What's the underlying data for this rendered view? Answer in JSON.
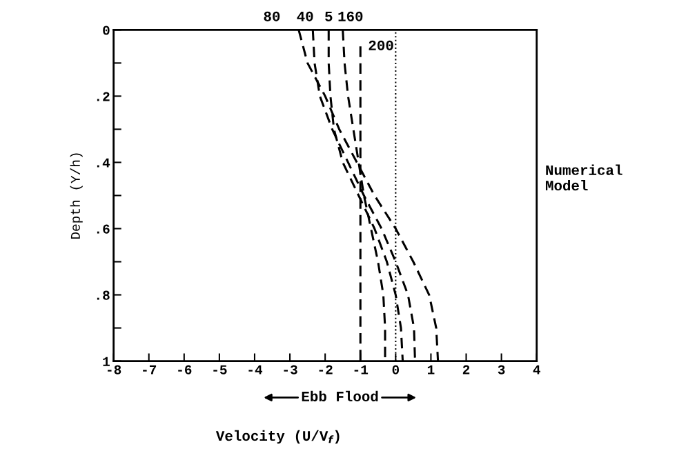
{
  "chart_data": {
    "type": "line",
    "xlabel": "Velocity (U/V$_{f}$)",
    "ylabel": "Depth (Y/h)",
    "xlim": [
      -8,
      4
    ],
    "xticks": [
      -8,
      -7,
      -6,
      -5,
      -4,
      -3,
      -2,
      -1,
      0,
      1,
      2,
      3,
      4
    ],
    "ylim": [
      1,
      0
    ],
    "yticks": [
      {
        "value": 0,
        "label": "0"
      },
      {
        "value": 0.1,
        "label": null
      },
      {
        "value": 0.2,
        "label": ".2"
      },
      {
        "value": 0.3,
        "label": null
      },
      {
        "value": 0.4,
        "label": ".4"
      },
      {
        "value": 0.5,
        "label": null
      },
      {
        "value": 0.6,
        "label": ".6"
      },
      {
        "value": 0.7,
        "label": null
      },
      {
        "value": 0.8,
        "label": ".8"
      },
      {
        "value": 0.9,
        "label": null
      },
      {
        "value": 1,
        "label": "1"
      }
    ],
    "line_style": "dashed",
    "marker": "none",
    "grid": false,
    "legend": false,
    "series": [
      {
        "name": "80",
        "color": "#000000",
        "x": [
          -2.75,
          -2.5,
          -2.0,
          -1.6,
          -1.1,
          -0.6,
          0.0,
          0.5,
          0.95,
          1.15,
          1.2
        ],
        "values": [
          0,
          0.1,
          0.2,
          0.3,
          0.4,
          0.5,
          0.6,
          0.7,
          0.8,
          0.9,
          1
        ]
      },
      {
        "name": "40",
        "color": "#000000",
        "x": [
          -2.35,
          -2.3,
          -2.15,
          -1.8,
          -1.35,
          -0.9,
          -0.4,
          0.0,
          0.35,
          0.52,
          0.55
        ],
        "values": [
          0,
          0.1,
          0.2,
          0.3,
          0.4,
          0.5,
          0.6,
          0.7,
          0.8,
          0.9,
          1
        ]
      },
      {
        "name": "5",
        "color": "#000000",
        "x": [
          -1.9,
          -1.9,
          -1.85,
          -1.75,
          -1.5,
          -1.05,
          -0.6,
          -0.25,
          0.0,
          0.15,
          0.2
        ],
        "values": [
          0,
          0.1,
          0.2,
          0.3,
          0.4,
          0.5,
          0.6,
          0.7,
          0.8,
          0.9,
          1
        ]
      },
      {
        "name": "160",
        "color": "#000000",
        "x": [
          -1.5,
          -1.45,
          -1.35,
          -1.2,
          -1.05,
          -0.9,
          -0.7,
          -0.5,
          -0.35,
          -0.3,
          -0.3
        ],
        "values": [
          0,
          0.1,
          0.2,
          0.3,
          0.4,
          0.5,
          0.6,
          0.7,
          0.8,
          0.9,
          1
        ]
      },
      {
        "name": "200",
        "color": "#000000",
        "x": [
          -1.0,
          -1.0
        ],
        "values": [
          0.05,
          1
        ]
      }
    ],
    "ref_lines": [
      {
        "axis": "x",
        "value": 0,
        "label": null,
        "color": "#000000",
        "line_style": "dotted"
      }
    ],
    "annotations": [
      "Numerical\nModel",
      "Ebb Flood"
    ]
  }
}
